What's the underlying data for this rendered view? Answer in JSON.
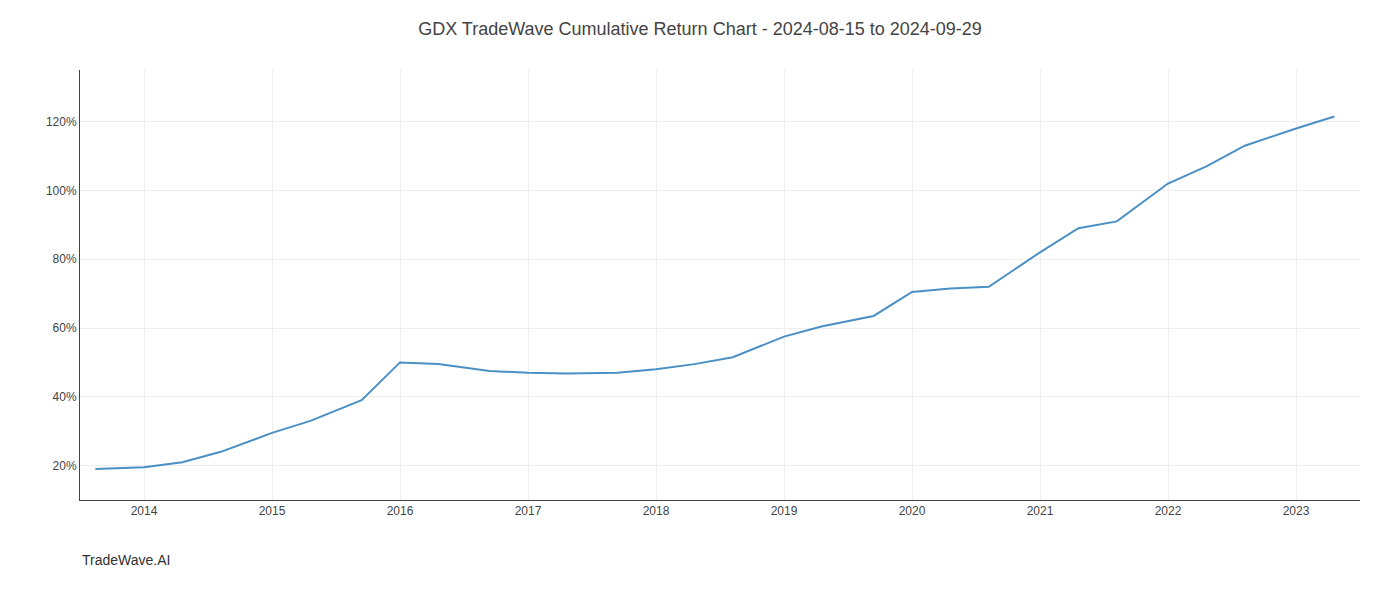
{
  "chart_data": {
    "type": "line",
    "title": "GDX TradeWave Cumulative Return Chart - 2024-08-15 to 2024-09-29",
    "annotations": [
      "TradeWave.AI"
    ],
    "x": [
      2013.62,
      2014.0,
      2014.3,
      2014.6,
      2015.0,
      2015.3,
      2015.7,
      2016.0,
      2016.3,
      2016.7,
      2017.0,
      2017.3,
      2017.7,
      2018.0,
      2018.3,
      2018.6,
      2019.0,
      2019.3,
      2019.7,
      2020.0,
      2020.3,
      2020.6,
      2021.0,
      2021.3,
      2021.6,
      2022.0,
      2022.3,
      2022.6,
      2023.0,
      2023.3
    ],
    "values": [
      19.0,
      19.5,
      21.0,
      24.0,
      29.5,
      33.0,
      39.0,
      50.0,
      49.5,
      47.5,
      47.0,
      46.8,
      47.0,
      48.0,
      49.5,
      51.5,
      57.5,
      60.5,
      63.5,
      70.5,
      71.5,
      72.0,
      82.0,
      89.0,
      91.0,
      102.0,
      107.0,
      113.0,
      118.0,
      121.5
    ],
    "color": "#4a90c4",
    "xlim": [
      2013.5,
      2023.5
    ],
    "xticks": [
      2014,
      2015,
      2016,
      2017,
      2018,
      2019,
      2020,
      2021,
      2022,
      2023
    ],
    "ylim": [
      10,
      135
    ],
    "yticks": [
      {
        "value": 20,
        "label": "20%"
      },
      {
        "value": 40,
        "label": "40%"
      },
      {
        "value": 60,
        "label": "60%"
      },
      {
        "value": 80,
        "label": "80%"
      },
      {
        "value": 100,
        "label": "100%"
      },
      {
        "value": 120,
        "label": "120%"
      }
    ],
    "grid": true
  }
}
